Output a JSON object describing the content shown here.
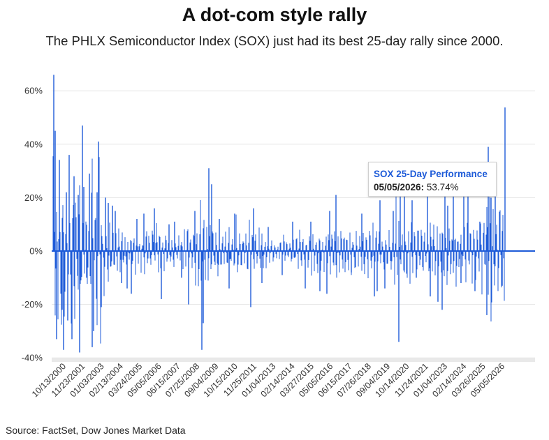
{
  "header": {
    "title": "A dot-com style rally",
    "subtitle": "The PHLX Semiconductor Index (SOX) just had its best 25-day rally since 2000."
  },
  "footer": {
    "source": "Source: FactSet, Dow Jones Market Data"
  },
  "tooltip": {
    "series_label": "SOX 25-Day Performance",
    "date": "05/05/2026:",
    "value": "53.74%"
  },
  "colors": {
    "series": "#1e5bd8",
    "grid": "#e6e6e6",
    "axis_band": "#e9e9e9"
  },
  "chart_data": {
    "type": "bar",
    "title": "A dot-com style rally",
    "subtitle": "The PHLX Semiconductor Index (SOX) just had its best 25-day rally since 2000.",
    "xlabel": "",
    "ylabel": "",
    "ylim": [
      -40,
      70
    ],
    "y_ticks": [
      -40,
      -20,
      0,
      20,
      40,
      60
    ],
    "y_tick_labels": [
      "-40%",
      "-20%",
      "0%",
      "20%",
      "40%",
      "60%"
    ],
    "grid": true,
    "x_tick_labels": [
      "10/13/2000",
      "11/23/2001",
      "01/03/2003",
      "02/13/2004",
      "03/24/2005",
      "05/05/2006",
      "06/15/2007",
      "07/25/2008",
      "09/04/2009",
      "10/15/2010",
      "11/25/2011",
      "01/04/2013",
      "02/14/2014",
      "03/27/2015",
      "05/05/2016",
      "06/15/2017",
      "07/26/2018",
      "09/04/2019",
      "10/14/2020",
      "11/24/2021",
      "01/04/2023",
      "02/14/2024",
      "03/26/2025",
      "05/05/2026"
    ],
    "series": [
      {
        "name": "SOX 25-Day Performance",
        "points": [
          {
            "x": "03/2000",
            "y": 66
          },
          {
            "x": "04/2000",
            "y": 45
          },
          {
            "x": "05/2000",
            "y": -33
          },
          {
            "x": "07/2000",
            "y": 34
          },
          {
            "x": "09/2000",
            "y": -22
          },
          {
            "x": "10/2000",
            "y": -37
          },
          {
            "x": "12/2000",
            "y": 22
          },
          {
            "x": "01/2001",
            "y": -26
          },
          {
            "x": "02/2001",
            "y": 36
          },
          {
            "x": "04/2001",
            "y": -33
          },
          {
            "x": "05/2001",
            "y": 28
          },
          {
            "x": "08/2001",
            "y": 21
          },
          {
            "x": "09/2001",
            "y": -38
          },
          {
            "x": "11/2001",
            "y": 47
          },
          {
            "x": "12/2001",
            "y": 24
          },
          {
            "x": "02/2002",
            "y": -10
          },
          {
            "x": "04/2002",
            "y": 29
          },
          {
            "x": "06/2002",
            "y": -36
          },
          {
            "x": "07/2002",
            "y": -30
          },
          {
            "x": "09/2002",
            "y": 22
          },
          {
            "x": "10/2002",
            "y": 41
          },
          {
            "x": "12/2002",
            "y": -21
          },
          {
            "x": "03/2003",
            "y": 20
          },
          {
            "x": "05/2003",
            "y": 18
          },
          {
            "x": "08/2003",
            "y": 17
          },
          {
            "x": "10/2003",
            "y": 15
          },
          {
            "x": "02/2004",
            "y": -12
          },
          {
            "x": "06/2004",
            "y": -14
          },
          {
            "x": "09/2004",
            "y": -16
          },
          {
            "x": "01/2005",
            "y": 12
          },
          {
            "x": "06/2005",
            "y": 14
          },
          {
            "x": "01/2006",
            "y": 16
          },
          {
            "x": "06/2006",
            "y": -18
          },
          {
            "x": "11/2006",
            "y": 10
          },
          {
            "x": "03/2007",
            "y": 11
          },
          {
            "x": "08/2007",
            "y": -10
          },
          {
            "x": "01/2008",
            "y": -20
          },
          {
            "x": "05/2008",
            "y": 15
          },
          {
            "x": "10/2008",
            "y": -37
          },
          {
            "x": "11/2008",
            "y": -27
          },
          {
            "x": "03/2009",
            "y": 31
          },
          {
            "x": "05/2009",
            "y": 25
          },
          {
            "x": "10/2009",
            "y": 12
          },
          {
            "x": "05/2010",
            "y": -14
          },
          {
            "x": "09/2010",
            "y": 14
          },
          {
            "x": "08/2011",
            "y": -21
          },
          {
            "x": "10/2011",
            "y": 16
          },
          {
            "x": "04/2012",
            "y": -12
          },
          {
            "x": "08/2012",
            "y": 9
          },
          {
            "x": "06/2013",
            "y": -9
          },
          {
            "x": "01/2014",
            "y": 11
          },
          {
            "x": "10/2014",
            "y": -14
          },
          {
            "x": "02/2015",
            "y": 11
          },
          {
            "x": "08/2015",
            "y": -15
          },
          {
            "x": "01/2016",
            "y": -16
          },
          {
            "x": "03/2016",
            "y": 15
          },
          {
            "x": "07/2016",
            "y": 21
          },
          {
            "x": "06/2017",
            "y": -8
          },
          {
            "x": "01/2018",
            "y": 14
          },
          {
            "x": "10/2018",
            "y": -17
          },
          {
            "x": "12/2018",
            "y": -15
          },
          {
            "x": "02/2019",
            "y": 19
          },
          {
            "x": "05/2019",
            "y": -14
          },
          {
            "x": "11/2019",
            "y": 15
          },
          {
            "x": "03/2020",
            "y": -34
          },
          {
            "x": "04/2020",
            "y": 26
          },
          {
            "x": "07/2020",
            "y": 21
          },
          {
            "x": "12/2020",
            "y": 19
          },
          {
            "x": "03/2021",
            "y": -10
          },
          {
            "x": "11/2021",
            "y": 21
          },
          {
            "x": "01/2022",
            "y": -17
          },
          {
            "x": "06/2022",
            "y": -19
          },
          {
            "x": "09/2022",
            "y": -22
          },
          {
            "x": "11/2022",
            "y": 22
          },
          {
            "x": "01/2023",
            "y": 17
          },
          {
            "x": "05/2023",
            "y": 23
          },
          {
            "x": "10/2023",
            "y": -12
          },
          {
            "x": "12/2023",
            "y": 24
          },
          {
            "x": "03/2024",
            "y": 22
          },
          {
            "x": "08/2024",
            "y": -15
          },
          {
            "x": "11/2024",
            "y": 11
          },
          {
            "x": "04/2025",
            "y": -24
          },
          {
            "x": "05/2025",
            "y": 39
          },
          {
            "x": "07/2025",
            "y": 20
          },
          {
            "x": "10/2025",
            "y": 28
          },
          {
            "x": "03/2026",
            "y": -13
          },
          {
            "x": "05/05/2026",
            "y": 53.74
          }
        ]
      }
    ]
  }
}
